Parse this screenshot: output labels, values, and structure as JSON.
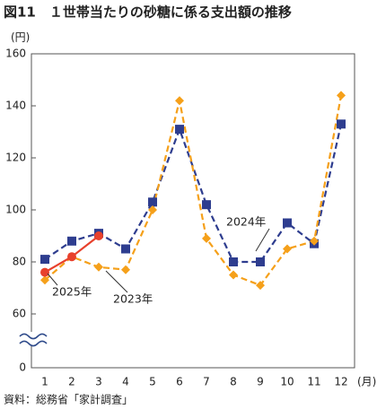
{
  "chart_data": {
    "type": "line",
    "title": "図11　１世帯当たりの砂糖に係る支出額の推移",
    "y_label": "(円)",
    "x_label": "(月)",
    "source": "資料：総務省「家計調査」",
    "categories": [
      "1",
      "2",
      "3",
      "4",
      "5",
      "6",
      "7",
      "8",
      "9",
      "10",
      "11",
      "12"
    ],
    "series": [
      {
        "name": "2024年",
        "color": "#2e3d8f",
        "marker": "square",
        "dash": true,
        "values": [
          81,
          88,
          91,
          85,
          103,
          131,
          102,
          80,
          80,
          95,
          87,
          133
        ]
      },
      {
        "name": "2023年",
        "color": "#f5a01a",
        "marker": "diamond",
        "dash": true,
        "values": [
          73,
          82,
          78,
          77,
          100,
          142,
          89,
          75,
          71,
          85,
          88,
          144
        ]
      },
      {
        "name": "2025年",
        "color": "#e8412c",
        "marker": "circle",
        "dash": false,
        "values": [
          76,
          82,
          90,
          null,
          null,
          null,
          null,
          null,
          null,
          null,
          null,
          null
        ]
      }
    ],
    "ylim": [
      0,
      160
    ],
    "y_break": [
      0,
      60
    ],
    "yticks": [
      0,
      60,
      80,
      100,
      120,
      140,
      160
    ],
    "grid": false
  }
}
